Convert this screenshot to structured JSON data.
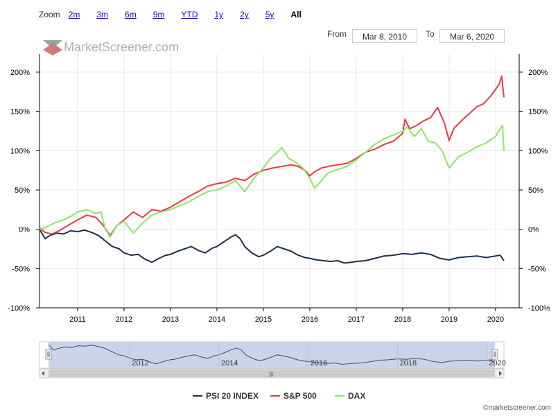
{
  "zoom": {
    "label": "Zoom",
    "buttons": [
      "2m",
      "3m",
      "6m",
      "9m",
      "YTD",
      "1y",
      "2y",
      "5y",
      "All"
    ],
    "active": "All"
  },
  "range": {
    "from_label": "From",
    "from_value": "Mar 8, 2010",
    "to_label": "To",
    "to_value": "Mar 6, 2020"
  },
  "watermark": "MarketScreener.com",
  "copyright": "©marketscreener.com",
  "colors": {
    "psi20": "#1c2f4a",
    "sp500": "#e8393f",
    "dax": "#8ee56a",
    "navigator_fill": "#c9d4e8"
  },
  "chart_data": {
    "type": "line",
    "x_unit": "year",
    "xlim": [
      2010.18,
      2020.18
    ],
    "ylim": [
      -100,
      200
    ],
    "y_ticks": [
      -100,
      -50,
      0,
      50,
      100,
      150,
      200
    ],
    "y_tick_labels": [
      "-100%",
      "-50%",
      "0%",
      "50%",
      "100%",
      "150%",
      "200%"
    ],
    "x_ticks": [
      2011,
      2012,
      2013,
      2014,
      2015,
      2016,
      2017,
      2018,
      2019,
      2020
    ],
    "x_tick_labels": [
      "2011",
      "2012",
      "2013",
      "2014",
      "2015",
      "2016",
      "2017",
      "2018",
      "2019",
      "2020"
    ],
    "grid": true,
    "legend_position": "bottom-center",
    "series": [
      {
        "name": "PSI 20 INDEX",
        "color": "#1c2f4a",
        "x": [
          2010.18,
          2010.3,
          2010.4,
          2010.55,
          2010.7,
          2010.85,
          2011.0,
          2011.15,
          2011.3,
          2011.45,
          2011.6,
          2011.75,
          2011.9,
          2012.0,
          2012.15,
          2012.3,
          2012.45,
          2012.6,
          2012.75,
          2012.9,
          2013.0,
          2013.15,
          2013.3,
          2013.45,
          2013.6,
          2013.75,
          2013.9,
          2014.0,
          2014.1,
          2014.2,
          2014.3,
          2014.4,
          2014.5,
          2014.6,
          2014.75,
          2014.9,
          2015.0,
          2015.15,
          2015.3,
          2015.45,
          2015.6,
          2015.75,
          2015.9,
          2016.0,
          2016.15,
          2016.3,
          2016.45,
          2016.6,
          2016.75,
          2016.9,
          2017.0,
          2017.2,
          2017.4,
          2017.6,
          2017.8,
          2018.0,
          2018.2,
          2018.4,
          2018.6,
          2018.8,
          2019.0,
          2019.2,
          2019.4,
          2019.6,
          2019.8,
          2020.0,
          2020.1,
          2020.18
        ],
        "values": [
          0,
          -12,
          -8,
          -5,
          -6,
          -2,
          -3,
          -1,
          -4,
          -8,
          -15,
          -22,
          -25,
          -30,
          -33,
          -32,
          -38,
          -42,
          -37,
          -33,
          -32,
          -28,
          -25,
          -22,
          -27,
          -30,
          -24,
          -22,
          -18,
          -14,
          -10,
          -7,
          -12,
          -22,
          -30,
          -35,
          -33,
          -28,
          -22,
          -25,
          -28,
          -33,
          -36,
          -37,
          -39,
          -40,
          -41,
          -40,
          -43,
          -42,
          -41,
          -40,
          -37,
          -34,
          -33,
          -31,
          -32,
          -30,
          -32,
          -37,
          -39,
          -36,
          -35,
          -34,
          -36,
          -34,
          -33,
          -40
        ]
      },
      {
        "name": "S&P 500",
        "color": "#e8393f",
        "x": [
          2010.18,
          2010.3,
          2010.45,
          2010.6,
          2010.8,
          2011.0,
          2011.2,
          2011.4,
          2011.55,
          2011.7,
          2011.85,
          2012.0,
          2012.2,
          2012.4,
          2012.6,
          2012.8,
          2013.0,
          2013.2,
          2013.4,
          2013.6,
          2013.8,
          2014.0,
          2014.2,
          2014.4,
          2014.6,
          2014.8,
          2015.0,
          2015.2,
          2015.4,
          2015.6,
          2015.75,
          2015.9,
          2016.0,
          2016.1,
          2016.25,
          2016.4,
          2016.6,
          2016.8,
          2017.0,
          2017.2,
          2017.4,
          2017.6,
          2017.8,
          2018.0,
          2018.05,
          2018.15,
          2018.3,
          2018.45,
          2018.6,
          2018.75,
          2018.9,
          2019.0,
          2019.1,
          2019.3,
          2019.45,
          2019.6,
          2019.75,
          2019.9,
          2020.0,
          2020.08,
          2020.13,
          2020.18
        ],
        "values": [
          2,
          -4,
          -6,
          -2,
          5,
          12,
          18,
          15,
          5,
          -8,
          5,
          12,
          22,
          15,
          25,
          23,
          28,
          35,
          42,
          48,
          55,
          58,
          60,
          65,
          62,
          70,
          75,
          78,
          80,
          82,
          80,
          75,
          68,
          73,
          78,
          80,
          82,
          84,
          90,
          98,
          102,
          108,
          112,
          122,
          140,
          128,
          132,
          138,
          142,
          155,
          135,
          113,
          128,
          140,
          148,
          156,
          160,
          170,
          178,
          185,
          195,
          168
        ]
      },
      {
        "name": "DAX",
        "color": "#8ee56a",
        "x": [
          2010.18,
          2010.3,
          2010.5,
          2010.7,
          2010.9,
          2011.0,
          2011.2,
          2011.4,
          2011.5,
          2011.6,
          2011.7,
          2011.85,
          2012.0,
          2012.2,
          2012.4,
          2012.6,
          2012.8,
          2013.0,
          2013.2,
          2013.4,
          2013.6,
          2013.8,
          2014.0,
          2014.2,
          2014.4,
          2014.6,
          2014.8,
          2015.0,
          2015.15,
          2015.3,
          2015.4,
          2015.55,
          2015.7,
          2015.85,
          2016.0,
          2016.1,
          2016.25,
          2016.4,
          2016.6,
          2016.8,
          2017.0,
          2017.2,
          2017.4,
          2017.6,
          2017.8,
          2018.0,
          2018.1,
          2018.25,
          2018.4,
          2018.55,
          2018.7,
          2018.85,
          2019.0,
          2019.2,
          2019.4,
          2019.6,
          2019.8,
          2020.0,
          2020.1,
          2020.15,
          2020.18
        ],
        "values": [
          0,
          2,
          8,
          12,
          18,
          22,
          25,
          20,
          22,
          0,
          -10,
          5,
          10,
          -5,
          8,
          18,
          22,
          25,
          30,
          35,
          42,
          48,
          50,
          55,
          62,
          48,
          65,
          78,
          90,
          98,
          104,
          90,
          85,
          78,
          65,
          52,
          62,
          72,
          76,
          80,
          88,
          98,
          108,
          115,
          120,
          125,
          130,
          118,
          128,
          112,
          110,
          100,
          78,
          92,
          98,
          105,
          110,
          118,
          128,
          132,
          100
        ]
      }
    ]
  }
}
